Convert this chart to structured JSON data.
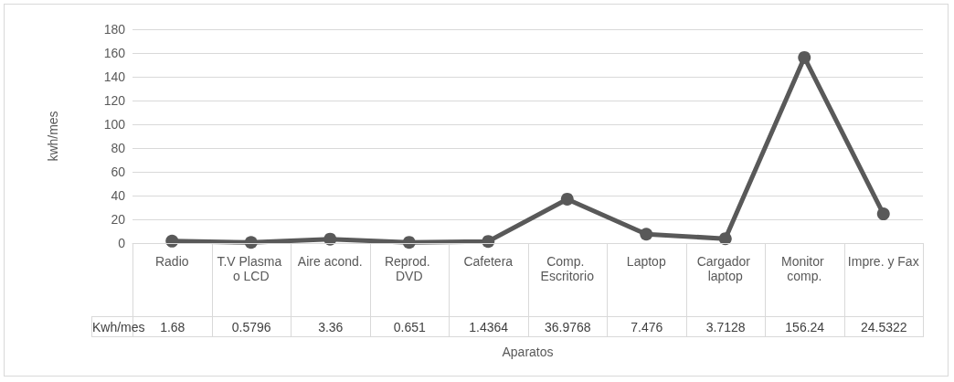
{
  "chart_data": {
    "type": "line",
    "xlabel": "Aparatos",
    "ylabel": "kwh/mes",
    "categories": [
      "Radio",
      "T.V Plasma o LCD",
      "Aire acond.",
      "Reprod. DVD",
      "Cafetera",
      "Comp. Escritorio",
      "Laptop",
      "Cargador laptop",
      "Monitor comp.",
      "Impre. y Fax"
    ],
    "series": [
      {
        "name": "Kwh/mes",
        "color": "#595959",
        "values": [
          1.68,
          0.5796,
          3.36,
          0.651,
          1.4364,
          36.9768,
          7.476,
          3.7128,
          156.24,
          24.5322
        ]
      }
    ],
    "ylim": [
      0,
      180
    ],
    "yticks": [
      0,
      20,
      40,
      60,
      80,
      100,
      120,
      140,
      160,
      180
    ],
    "grid": "y",
    "marker": "circle",
    "line_style": "solid",
    "data_labels": true,
    "legend": false
  }
}
